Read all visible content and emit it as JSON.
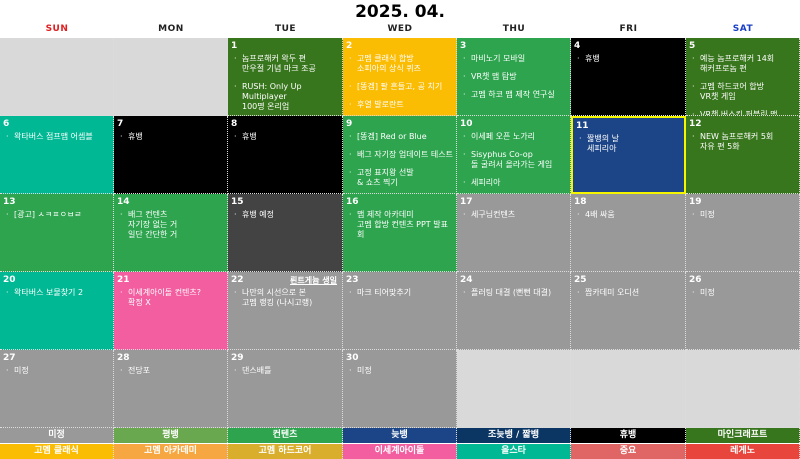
{
  "title": "2025. 04.",
  "weekdays": [
    {
      "label": "SUN",
      "color": "#e02020"
    },
    {
      "label": "MON",
      "color": "#222"
    },
    {
      "label": "TUE",
      "color": "#222"
    },
    {
      "label": "WED",
      "color": "#222"
    },
    {
      "label": "THU",
      "color": "#222"
    },
    {
      "label": "FRI",
      "color": "#222"
    },
    {
      "label": "SAT",
      "color": "#1a3fc7"
    }
  ],
  "days": [
    {
      "day": "",
      "color": "#d9d9d9",
      "items": []
    },
    {
      "day": "",
      "color": "#d9d9d9",
      "items": []
    },
    {
      "day": "1",
      "color": "#38761d",
      "items": [
        "놈프로해커 왁두 편\n만우절 기념 마크 조공",
        "RUSH: Only Up Multiplayer\n100명 온리업"
      ]
    },
    {
      "day": "2",
      "color": "#fbbc04",
      "items": [
        "고멤 클래식 합방\n소피아의 상식 퀴즈",
        "[똥겜] 팔 흔들고, 공 치기",
        "후열 발로란트"
      ]
    },
    {
      "day": "3",
      "color": "#2ea44f",
      "items": [
        "마비노기 모바일",
        "VR챗 맵 탐방",
        "고멤 하코 맵 제작 연구실"
      ]
    },
    {
      "day": "4",
      "color": "#000000",
      "items": [
        "휴뱅"
      ]
    },
    {
      "day": "5",
      "color": "#38761d",
      "items": [
        "예능 놈프로해커 14회\n해커프로놈 편",
        "고멤 하드코어 합방\nVR챗 게임",
        "VR챗 버스킹 퍼블릭 맵"
      ]
    },
    {
      "day": "6",
      "color": "#00b894",
      "items": [
        "왁타버스 점프맵 어셈블"
      ]
    },
    {
      "day": "7",
      "color": "#000000",
      "items": [
        "휴뱅"
      ]
    },
    {
      "day": "8",
      "color": "#000000",
      "items": [
        "휴뱅"
      ]
    },
    {
      "day": "9",
      "color": "#2ea44f",
      "items": [
        "[똥겜] Red or Blue",
        "배그 자기장 업데이트 테스트",
        "고정 표지왕 선발\n& 쇼츠 찍기"
      ]
    },
    {
      "day": "10",
      "color": "#2ea44f",
      "items": [
        "이세페 오픈 노가리",
        "Sisyphus Co-op\n돌 굴려서 올라가는 게임",
        "세피리아"
      ]
    },
    {
      "day": "11",
      "color": "#1c4587",
      "selected": true,
      "items": [
        "짧뱅의 날\n세피리아"
      ]
    },
    {
      "day": "12",
      "color": "#38761d",
      "items": [
        "NEW 놈프로해커 5회\n자유 편 5화"
      ]
    },
    {
      "day": "13",
      "color": "#2ea44f",
      "items": [
        "[광고] ㅅㅋㅍㅇㅂㄹ"
      ]
    },
    {
      "day": "14",
      "color": "#2ea44f",
      "items": [
        "배그 컨텐츠\n자기장 없는 거\n일단 간단한 거"
      ]
    },
    {
      "day": "15",
      "color": "#434343",
      "items": [
        "휴뱅 예정"
      ]
    },
    {
      "day": "16",
      "color": "#2ea44f",
      "items": [
        "맵 제작 아카데미\n고멤 합방 컨텐츠 PPT 발표회"
      ]
    },
    {
      "day": "17",
      "color": "#999999",
      "items": [
        "세구님컨텐츠"
      ]
    },
    {
      "day": "18",
      "color": "#999999",
      "items": [
        "4배 싸움"
      ]
    },
    {
      "day": "19",
      "color": "#999999",
      "items": [
        "미정"
      ]
    },
    {
      "day": "20",
      "color": "#00b894",
      "items": [
        "왁타버스 보물찾기 2"
      ]
    },
    {
      "day": "21",
      "color": "#f35ea0",
      "items": [
        "이세계아이돌 컨텐츠?\n확정 X"
      ]
    },
    {
      "day": "22",
      "color": "#999999",
      "note": "뢴트게늄 생일",
      "items": [
        "나만의 시선으로 본\n고멤 랭킹 (나시고랭)"
      ]
    },
    {
      "day": "23",
      "color": "#999999",
      "items": [
        "마크 티어맞추기"
      ]
    },
    {
      "day": "24",
      "color": "#999999",
      "items": [
        "플러팅 대결 (뻔뻔 대결)"
      ]
    },
    {
      "day": "25",
      "color": "#999999",
      "items": [
        "짭카데미 오디션"
      ]
    },
    {
      "day": "26",
      "color": "#999999",
      "items": [
        "미정"
      ]
    },
    {
      "day": "27",
      "color": "#999999",
      "items": [
        "미정"
      ]
    },
    {
      "day": "28",
      "color": "#999999",
      "items": [
        "전당포"
      ]
    },
    {
      "day": "29",
      "color": "#999999",
      "items": [
        "댄스배틀"
      ]
    },
    {
      "day": "30",
      "color": "#999999",
      "items": [
        "미정"
      ]
    },
    {
      "day": "",
      "color": "#d9d9d9",
      "items": []
    },
    {
      "day": "",
      "color": "#d9d9d9",
      "items": []
    },
    {
      "day": "",
      "color": "#d9d9d9",
      "items": []
    }
  ],
  "legend": [
    [
      {
        "label": "미정",
        "color": "#999999"
      },
      {
        "label": "평뱅",
        "color": "#6aa84f"
      },
      {
        "label": "컨텐츠",
        "color": "#2ea44f"
      },
      {
        "label": "늦뱅",
        "color": "#1c4587"
      },
      {
        "label": "조늦뱅 / 짧뱅",
        "color": "#0b3563"
      },
      {
        "label": "휴뱅",
        "color": "#000000"
      },
      {
        "label": "마인크래프트",
        "color": "#38761d"
      }
    ],
    [
      {
        "label": "고멤 클래식",
        "color": "#fbbc04"
      },
      {
        "label": "고멤 아카데미",
        "color": "#f6a742"
      },
      {
        "label": "고멤 하드코어",
        "color": "#d8ae2c"
      },
      {
        "label": "이세계아이돌",
        "color": "#f35ea0"
      },
      {
        "label": "올스타",
        "color": "#00b894"
      },
      {
        "label": "중요",
        "color": "#e06666"
      },
      {
        "label": "레게노",
        "color": "#e8453c"
      }
    ]
  ]
}
